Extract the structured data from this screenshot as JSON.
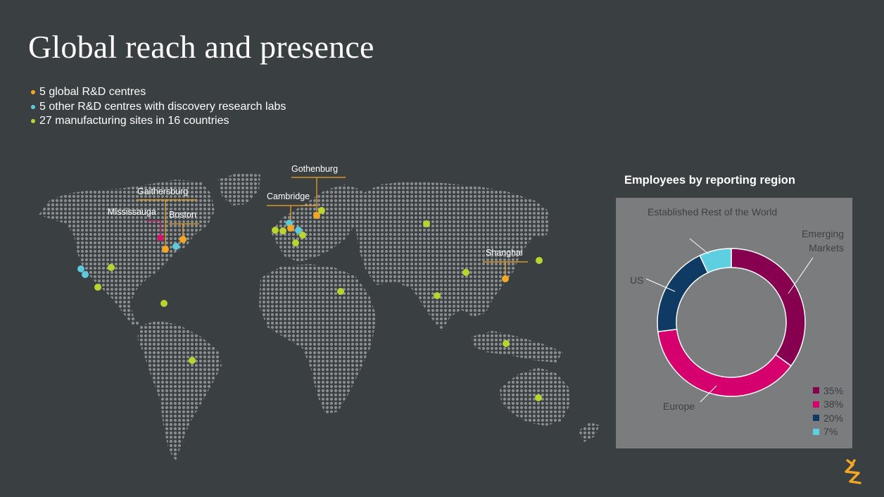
{
  "title": "Global reach and presence",
  "bullets": [
    {
      "text": "5 global R&D centres",
      "color": "#f5a623"
    },
    {
      "text": "5 other R&D centres with discovery research labs",
      "color": "#5ec9d8"
    },
    {
      "text": "27 manufacturing sites in 16 countries",
      "color": "#b9d32f"
    }
  ],
  "map": {
    "labels": {
      "gothenburg": "Gothenburg",
      "cambridge": "Cambridge",
      "gaithersburg": "Gaithersburg",
      "mississauga": "Mississauga",
      "boston": "Boston",
      "shanghai": "Shanghai"
    },
    "colors": {
      "rd_global": "#f5a623",
      "rd_other": "#5ec9d8",
      "manufacturing": "#b9d32f",
      "mississauga": "#d6126b",
      "land": "#8a8d90"
    }
  },
  "chart_data": {
    "type": "pie",
    "title": "Employees by reporting region",
    "categories": [
      "Emerging Markets",
      "Europe",
      "US",
      "Established Rest of the World"
    ],
    "values": [
      35,
      38,
      20,
      7
    ],
    "value_labels": [
      "35%",
      "38%",
      "20%",
      "7%"
    ],
    "colors": [
      "#86004f",
      "#d5006d",
      "#0f3a63",
      "#5ecfe0"
    ],
    "legend_position": "bottom-right"
  }
}
